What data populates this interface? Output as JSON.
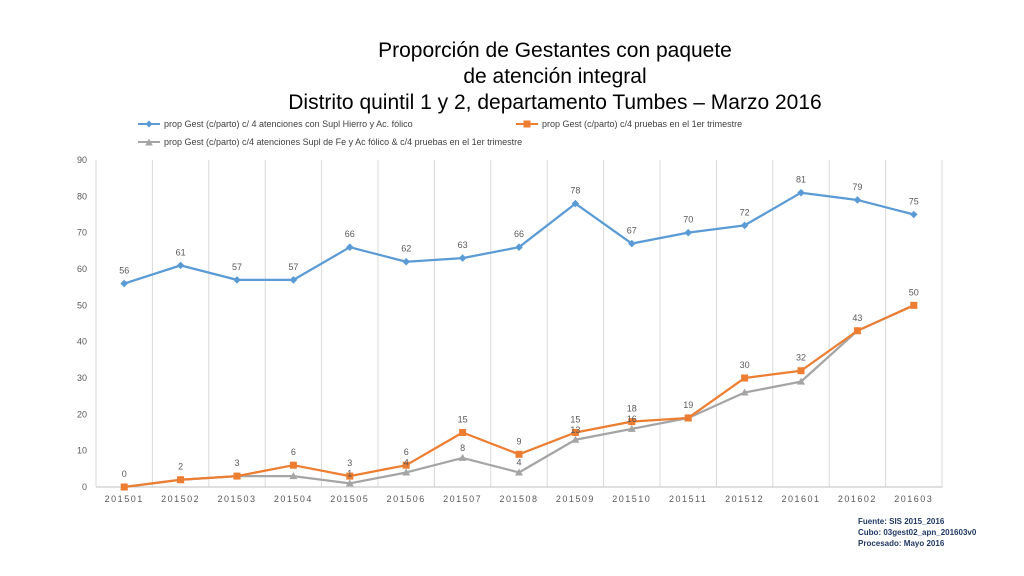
{
  "title_lines": [
    "Proporción de Gestantes con paquete",
    "de atención integral",
    "Distrito quintil 1 y 2, departamento Tumbes – Marzo 2016"
  ],
  "source_lines": [
    "Fuente: SIS 2015_2016",
    "Cubo: 03gest02_apn_201603v0",
    "Procesado: Mayo 2016"
  ],
  "chart_data": {
    "type": "line",
    "categories": [
      "201501",
      "201502",
      "201503",
      "201504",
      "201505",
      "201506",
      "201507",
      "201508",
      "201509",
      "201510",
      "201511",
      "201512",
      "201601",
      "201602",
      "201603"
    ],
    "ylim": [
      0,
      90
    ],
    "yticks": [
      0,
      10,
      20,
      30,
      40,
      50,
      60,
      70,
      80,
      90
    ],
    "grid": "vertical",
    "legend_position": "top",
    "series": [
      {
        "name": "prop Gest (c/parto) c/ 4 atenciones con Supl Hierro y Ac. fólico",
        "color": "#5b9bd5",
        "marker": "diamond",
        "values": [
          56,
          61,
          57,
          57,
          66,
          62,
          63,
          66,
          78,
          67,
          70,
          72,
          81,
          79,
          75
        ],
        "labels": [
          "56",
          "61",
          "57",
          "57",
          "66",
          "62",
          "63",
          "66",
          "78",
          "67",
          "70",
          "72",
          "81",
          "79",
          "75"
        ]
      },
      {
        "name": "prop Gest (c/parto) c/4 pruebas en el 1er trimestre",
        "color": "#ed7d31",
        "marker": "square",
        "values": [
          0,
          2,
          3,
          6,
          3,
          6,
          15,
          9,
          15,
          18,
          19,
          30,
          32,
          43,
          50
        ],
        "labels": [
          "0",
          "2",
          "3",
          "6",
          "3",
          "6",
          "15",
          "9",
          "15",
          "18",
          "19",
          "30",
          "32",
          "43",
          "50"
        ]
      },
      {
        "name": "prop Gest (c/parto) c/4 atenciones Supl de Fe y Ac fólico & c/4 pruebas en el 1er trimestre",
        "color": "#a5a5a5",
        "marker": "triangle",
        "values": [
          0,
          2,
          3,
          3,
          1,
          4,
          8,
          4,
          13,
          16,
          19,
          26,
          29,
          43,
          50
        ],
        "labels": [
          "",
          "",
          "",
          "",
          "1",
          "4",
          "8",
          "4",
          "13",
          "16",
          "",
          "",
          "",
          "",
          ""
        ]
      }
    ]
  }
}
